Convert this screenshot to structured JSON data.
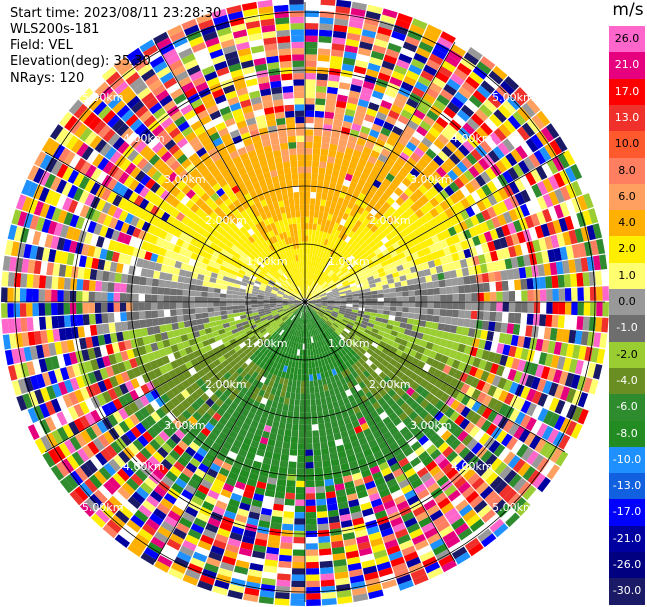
{
  "header": {
    "start_time": "Start time: 2023/08/11 23:28:30",
    "instrument": "WLS200s-181",
    "field": "Field: VEL",
    "elevation": "Elevation(deg): 35.30",
    "nrays": "NRays: 120"
  },
  "colorbar": {
    "unit": "m/s",
    "ticks": [
      "26.0",
      "21.0",
      "17.0",
      "13.0",
      "10.0",
      "8.0",
      "6.0",
      "4.0",
      "2.0",
      "1.0",
      "0.0",
      "-1.0",
      "-2.0",
      "-4.0",
      "-6.0",
      "-8.0",
      "-10.0",
      "-13.0",
      "-17.0",
      "-21.0",
      "-26.0",
      "-30.0"
    ],
    "colors": [
      "#ff66cc",
      "#e6007e",
      "#ff0000",
      "#f0302a",
      "#ff5a2d",
      "#ff7f60",
      "#ffa060",
      "#ffb000",
      "#ffee00",
      "#ffff70",
      "#999999",
      "#6e6e6e",
      "#9acd32",
      "#6b8e23",
      "#2e8b2e",
      "#228b22",
      "#1e90ff",
      "#1060e0",
      "#0000ff",
      "#0000a0",
      "#000080",
      "#1a1a66"
    ]
  },
  "range_rings": {
    "labels": [
      "1.00km",
      "2.00km",
      "3.00km",
      "4.00km",
      "5.00km"
    ]
  },
  "chart_data": {
    "type": "heatmap",
    "projection": "polar PPI (plan position indicator)",
    "field": "VEL",
    "units": "m/s",
    "n_rays": 120,
    "elevation_deg": 35.3,
    "range_rings_km": [
      1,
      2,
      3,
      4,
      5
    ],
    "color_scale_ticks": [
      26.0,
      21.0,
      17.0,
      13.0,
      10.0,
      8.0,
      6.0,
      4.0,
      2.0,
      1.0,
      0.0,
      -1.0,
      -2.0,
      -4.0,
      -6.0,
      -8.0,
      -10.0,
      -13.0,
      -17.0,
      -21.0,
      -26.0,
      -30.0
    ],
    "pattern": "positive (yellow/orange) velocities in the northern half, near-zero (gray) along the east-west axis, negative (green) velocities in the southern half; outer gates beyond ~3 km are noisy"
  }
}
